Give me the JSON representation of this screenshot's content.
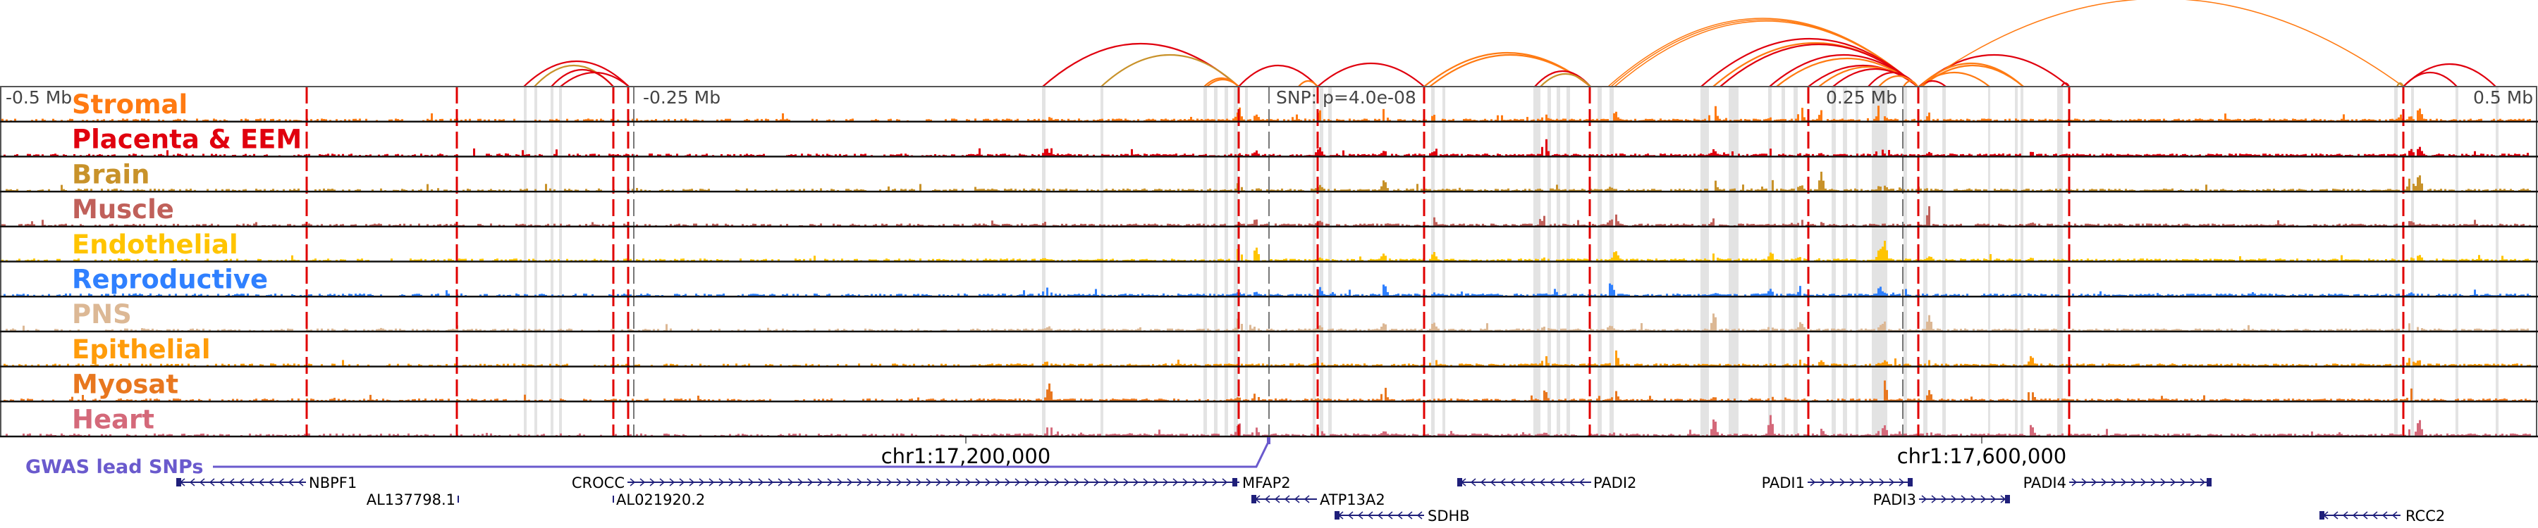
{
  "tracks": [
    {
      "name": "Stromal",
      "color": "#ff7a12"
    },
    {
      "name": "Placenta & EEM",
      "color": "#e0000e"
    },
    {
      "name": "Brain",
      "color": "#c8922a"
    },
    {
      "name": "Muscle",
      "color": "#c0605a"
    },
    {
      "name": "Endothelial",
      "color": "#ffc400"
    },
    {
      "name": "Reproductive",
      "color": "#2f80ff"
    },
    {
      "name": "PNS",
      "color": "#dcb895"
    },
    {
      "name": "Epithelial",
      "color": "#ff9c0a"
    },
    {
      "name": "Myosat",
      "color": "#e8771f"
    },
    {
      "name": "Heart",
      "color": "#d4697a"
    }
  ],
  "axis": {
    "offsets": [
      "-0.5 Mb",
      "-0.25 Mb",
      "0.25 Mb",
      "0.5 Mb"
    ],
    "snp_label": "SNP: p=4.0e-08",
    "ticks": [
      "chr1:17,200,000",
      "chr1:17,600,000"
    ]
  },
  "gwas": {
    "label": "GWAS lead SNPs",
    "color": "#6a5acd"
  },
  "genes": [
    "NBPF1",
    "AL137798.1",
    "CROCC",
    "AL021920.2",
    "MFAP2",
    "ATP13A2",
    "SDHB",
    "PADI2",
    "PADI1",
    "PADI3",
    "PADI4",
    "RCC2"
  ],
  "colors": {
    "highlight": "#e00000",
    "shade": "#e3e3e3",
    "gene": "#1f1f7a"
  }
}
